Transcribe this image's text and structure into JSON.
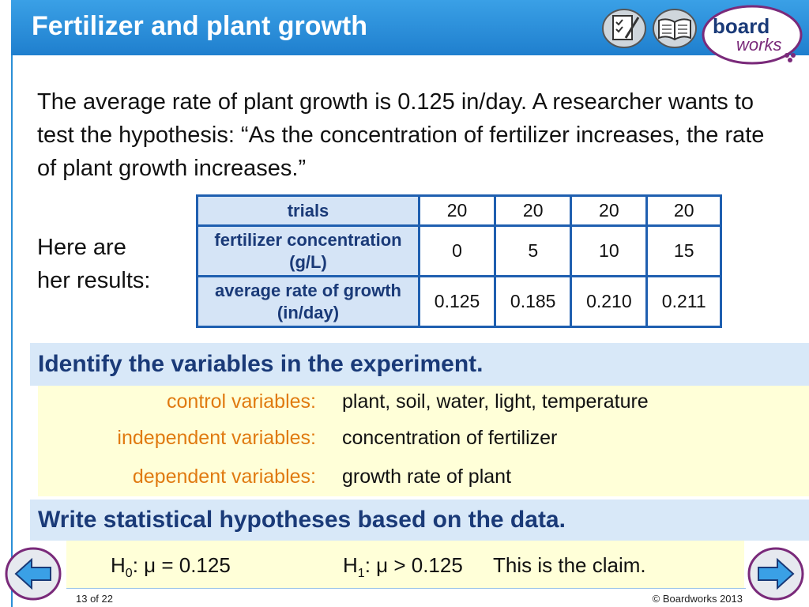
{
  "header": {
    "title": "Fertilizer and plant growth",
    "icons": [
      "worksheet-icon",
      "book-icon"
    ],
    "logo": {
      "line1": "board",
      "line2": "works"
    }
  },
  "intro": "The average rate of plant growth is 0.125 in/day. A researcher wants to test the hypothesis: “As the concentration of fertilizer increases, the rate of plant growth increases.”",
  "results_label": {
    "line1": "Here are",
    "line2": "her results:"
  },
  "table": {
    "rows": [
      {
        "head": "trials",
        "cells": [
          "20",
          "20",
          "20",
          "20"
        ]
      },
      {
        "head": "fertilizer concentration (g/L)",
        "cells": [
          "0",
          "5",
          "10",
          "15"
        ]
      },
      {
        "head": "average rate of growth (in/day)",
        "cells": [
          "0.125",
          "0.185",
          "0.210",
          "0.211"
        ]
      }
    ]
  },
  "identify": {
    "heading": "Identify the variables in the experiment.",
    "items": [
      {
        "label": "control variables:",
        "value": "plant, soil, water, light, temperature"
      },
      {
        "label": "independent variables:",
        "value": "concentration of fertilizer"
      },
      {
        "label": "dependent variables:",
        "value": "growth rate of plant"
      }
    ]
  },
  "hypotheses": {
    "heading": "Write statistical hypotheses based on the data.",
    "h0": {
      "symbol": "H",
      "sub": "0",
      "rel": ": μ = 0.125"
    },
    "h1": {
      "symbol": "H",
      "sub": "1",
      "rel": ": μ > 0.125"
    },
    "claim": "This is the claim."
  },
  "footer": {
    "page": "13 of 22",
    "copyright": "© Boardworks 2013"
  },
  "colors": {
    "header": "#2b8fd6",
    "accent_orange": "#e07a10",
    "band": "#d8e8f8",
    "yellow": "#ffffd8",
    "table_border": "#1f5fb0"
  }
}
